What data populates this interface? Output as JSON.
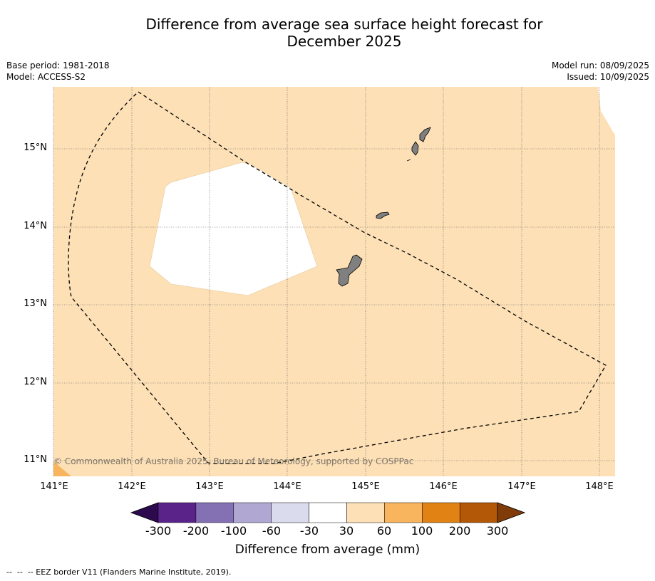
{
  "title_line1": "Difference from average sea surface height forecast for",
  "title_line2": "December 2025",
  "base_period": "Base period: 1981-2018",
  "model": "Model: ACCESS-S2",
  "model_run": "Model run: 08/09/2025",
  "issued": "Issued: 10/09/2025",
  "copyright": "© Commonwealth of Australia 2025, Bureau of Meteorology, supported by COSPPac",
  "lat_labels": [
    "15°N",
    "14°N",
    "13°N",
    "12°N",
    "11°N"
  ],
  "lon_labels": [
    "141°E",
    "142°E",
    "143°E",
    "144°E",
    "145°E",
    "146°E",
    "147°E",
    "148°E"
  ],
  "colorbar": {
    "label": "Difference from average (mm)",
    "ticks": [
      "-300",
      "-200",
      "-100",
      "-60",
      "-30",
      "30",
      "60",
      "100",
      "200",
      "300"
    ],
    "colors": [
      "#2d0a4e",
      "#5a2389",
      "#8371b3",
      "#b0a8d3",
      "#dadbec",
      "#ffffff",
      "#fde0b6",
      "#f8b55e",
      "#e08214",
      "#b35806",
      "#7f3b08"
    ]
  },
  "footer": "--  --  -- EEZ border V11 (Flanders Marine Institute, 2019)."
}
